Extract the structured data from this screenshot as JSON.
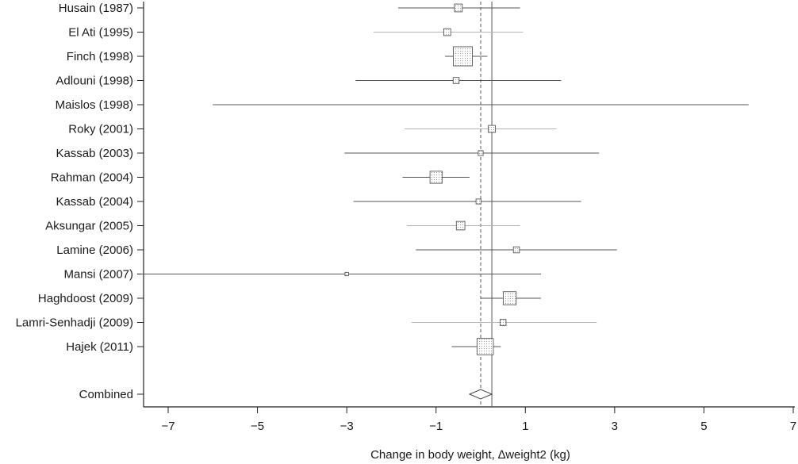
{
  "chart_data": {
    "type": "forest",
    "xlabel": "Change in body weight, ∆weight2 (kg)",
    "xlim": [
      -7.7,
      7.0
    ],
    "xticks": [
      -7,
      -5,
      -3,
      -1,
      1,
      3,
      5,
      7
    ],
    "xtick_labels": [
      "−7",
      "−5",
      "−3",
      "−1",
      "1",
      "3",
      "5",
      "7"
    ],
    "null_line": 0.25,
    "pooled_estimate": 0.0,
    "grid": false,
    "studies": [
      {
        "label": "Husain (1987)",
        "estimate": -0.5,
        "lower": -1.85,
        "upper": 0.88,
        "weight": 0.05,
        "shade": "dark"
      },
      {
        "label": "El Ati (1995)",
        "estimate": -0.75,
        "lower": -2.4,
        "upper": 0.95,
        "weight": 0.04,
        "shade": "light"
      },
      {
        "label": "Finch (1998)",
        "estimate": -0.4,
        "lower": -0.8,
        "upper": 0.15,
        "weight": 0.3,
        "shade": "dark"
      },
      {
        "label": "Adlouni (1998)",
        "estimate": -0.55,
        "lower": -2.8,
        "upper": 1.8,
        "weight": 0.03,
        "shade": "dark"
      },
      {
        "label": "Maislos (1998)",
        "estimate": 0.0,
        "lower": -6.0,
        "upper": 6.0,
        "weight": 0.0,
        "shade": "dark"
      },
      {
        "label": "Roky (2001)",
        "estimate": 0.25,
        "lower": -1.7,
        "upper": 1.7,
        "weight": 0.04,
        "shade": "light"
      },
      {
        "label": "Kassab (2003)",
        "estimate": 0.0,
        "lower": -3.05,
        "upper": 2.65,
        "weight": 0.02,
        "shade": "dark"
      },
      {
        "label": "Rahman (2004)",
        "estimate": -1.0,
        "lower": -1.75,
        "upper": -0.25,
        "weight": 0.12,
        "shade": "dark"
      },
      {
        "label": "Kassab (2004)",
        "estimate": -0.05,
        "lower": -2.85,
        "upper": 2.25,
        "weight": 0.02,
        "shade": "dark"
      },
      {
        "label": "Aksungar (2005)",
        "estimate": -0.45,
        "lower": -1.65,
        "upper": 0.88,
        "weight": 0.06,
        "shade": "light"
      },
      {
        "label": "Lamine (2006)",
        "estimate": 0.8,
        "lower": -1.45,
        "upper": 3.05,
        "weight": 0.03,
        "shade": "dark"
      },
      {
        "label": "Mansi (2007)",
        "estimate": -3.0,
        "lower": -7.6,
        "upper": 1.35,
        "weight": 0.01,
        "shade": "dark"
      },
      {
        "label": "Haghdoost (2009)",
        "estimate": 0.65,
        "lower": 0.0,
        "upper": 1.35,
        "weight": 0.14,
        "shade": "dark"
      },
      {
        "label": "Lamri-Senhadji (2009)",
        "estimate": 0.5,
        "lower": -1.55,
        "upper": 2.6,
        "weight": 0.03,
        "shade": "light"
      },
      {
        "label": "Hajek (2011)",
        "estimate": 0.1,
        "lower": -0.65,
        "upper": 0.45,
        "weight": 0.22,
        "shade": "dark"
      }
    ],
    "combined": {
      "label": "Combined",
      "estimate": 0.0,
      "lower": -0.22,
      "upper": 0.22
    }
  }
}
